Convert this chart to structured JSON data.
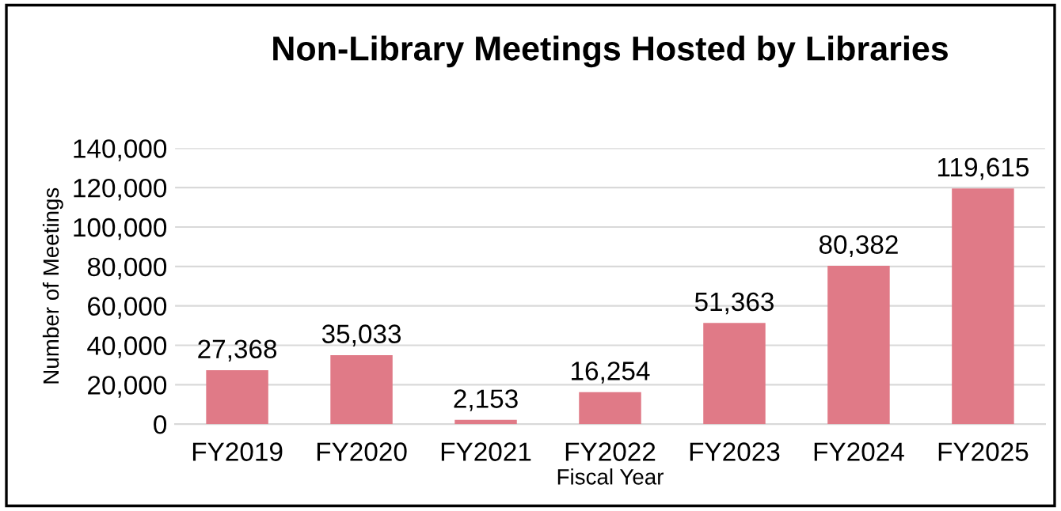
{
  "chart_data": {
    "type": "bar",
    "title": "Non-Library Meetings Hosted by Libraries",
    "xlabel": "Fiscal Year",
    "ylabel": "Number of Meetings",
    "categories": [
      "FY2019",
      "FY2020",
      "FY2021",
      "FY2022",
      "FY2023",
      "FY2024",
      "FY2025"
    ],
    "values": [
      27368,
      35033,
      2153,
      16254,
      51363,
      80382,
      119615
    ],
    "value_labels": [
      "27,368",
      "35,033",
      "2,153",
      "16,254",
      "51,363",
      "80,382",
      "119,615"
    ],
    "color": "#e07a87",
    "ylim": [
      0,
      140000
    ],
    "yticks": [
      {
        "value": 0,
        "label": "0"
      },
      {
        "value": 20000,
        "label": "20,000"
      },
      {
        "value": 40000,
        "label": "40,000"
      },
      {
        "value": 60000,
        "label": "60,000"
      },
      {
        "value": 80000,
        "label": "80,000"
      },
      {
        "value": 100000,
        "label": "100,000"
      },
      {
        "value": 120000,
        "label": "120,000"
      },
      {
        "value": 140000,
        "label": "140,000"
      }
    ],
    "grid": "y",
    "legend": false
  }
}
